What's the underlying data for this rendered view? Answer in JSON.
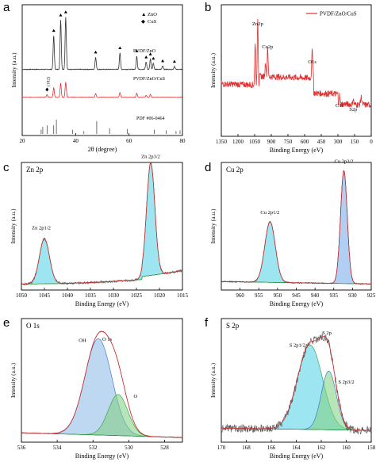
{
  "chart_data": [
    {
      "panel": "a",
      "type": "line",
      "xlabel": "2θ (degree)",
      "ylabel": "Intensity (a.u.)",
      "xlim": [
        20,
        80
      ],
      "xticks": [
        "20",
        "40",
        "60",
        "80"
      ],
      "legend": [
        {
          "symbol": "▲",
          "label": "ZnO"
        },
        {
          "symbol": "◆",
          "label": "CuS"
        }
      ],
      "legend_position": "top-right",
      "series": [
        {
          "name": "PVDF/ZnO",
          "color": "#333333",
          "peaks": [
            [
              31.8,
              0.55
            ],
            [
              34.4,
              0.8
            ],
            [
              36.3,
              0.85
            ],
            [
              47.5,
              0.2
            ],
            [
              56.6,
              0.27
            ],
            [
              62.9,
              0.22
            ],
            [
              66.4,
              0.12
            ],
            [
              68.0,
              0.17
            ],
            [
              69.1,
              0.1
            ],
            [
              72.6,
              0.06
            ],
            [
              77.0,
              0.05
            ]
          ]
        },
        {
          "name": "PVDF/ZnO/CuS",
          "color": "#e03030",
          "peaks": [
            [
              29.3,
              0.08
            ],
            [
              31.8,
              0.3
            ],
            [
              34.4,
              0.45
            ],
            [
              36.3,
              0.48
            ],
            [
              47.5,
              0.12
            ],
            [
              56.6,
              0.15
            ],
            [
              62.9,
              0.13
            ],
            [
              66.4,
              0.06
            ],
            [
              68.0,
              0.09
            ]
          ]
        }
      ],
      "annotations": [
        "PVDF/ZnO",
        "PVDF/ZnO/CuS",
        "PDF #06-0464",
        "(102)"
      ],
      "reference_lines": [
        27.1,
        27.7,
        29.3,
        31.8,
        32.8,
        38.8,
        43.1,
        47.9,
        52.7,
        59.3,
        69.5,
        73.9,
        77.6,
        79.1
      ],
      "reference_heights": [
        0.3,
        0.5,
        0.6,
        0.6,
        1.0,
        0.3,
        0.2,
        0.9,
        0.4,
        0.35,
        0.3,
        0.25,
        0.2,
        0.25
      ]
    },
    {
      "panel": "b",
      "type": "line",
      "xlabel": "Binding Energy (eV)",
      "ylabel": "Intensity (a.u.)",
      "xlim": [
        1350,
        0
      ],
      "xticks": [
        "1350",
        "1200",
        "1050",
        "900",
        "750",
        "600",
        "450",
        "300",
        "150",
        "0"
      ],
      "legend": [
        {
          "label": "PVDF/ZnO/CuS",
          "color": "#e03030"
        }
      ],
      "legend_position": "top-right",
      "peak_labels": [
        {
          "label": "Zn2p",
          "x": 1022
        },
        {
          "label": "Cu2p",
          "x": 933
        },
        {
          "label": "O1s",
          "x": 531
        },
        {
          "label": "C1s",
          "x": 285
        },
        {
          "label": "S2p",
          "x": 162
        }
      ]
    },
    {
      "panel": "c",
      "type": "area",
      "title": "Zn 2p",
      "xlabel": "Binding Energy (eV)",
      "ylabel": "Intensity (a.u.)",
      "xlim": [
        1050,
        1015
      ],
      "xticks": [
        "1050",
        "1045",
        "1040",
        "1035",
        "1030",
        "1025",
        "1020",
        "1015"
      ],
      "peaks": [
        {
          "label": "Zn 2p1/2",
          "center": 1045.0,
          "height": 0.37,
          "width": 1.1
        },
        {
          "label": "Zn 2p3/2",
          "center": 1021.9,
          "height": 0.93,
          "width": 0.9
        }
      ]
    },
    {
      "panel": "d",
      "type": "area",
      "title": "Cu 2p",
      "xlabel": "Binding Energy (eV)",
      "ylabel": "Intensity (a.u.)",
      "xlim": [
        965,
        925
      ],
      "xticks": [
        "960",
        "955",
        "950",
        "945",
        "940",
        "935",
        "930",
        "925"
      ],
      "peaks": [
        {
          "label": "Cu 2p1/2",
          "center": 952.0,
          "height": 0.5,
          "width": 1.4
        },
        {
          "label": "Cu 2p3/2",
          "center": 932.3,
          "height": 0.93,
          "width": 0.9
        }
      ]
    },
    {
      "panel": "e",
      "type": "area",
      "title": "O 1s",
      "xlabel": "Binding Energy (eV)",
      "ylabel": "Intensity (a.u.)",
      "xlim": [
        536,
        527
      ],
      "xticks": [
        "536",
        "534",
        "532",
        "530",
        "528"
      ],
      "peaks": [
        {
          "label": "OH",
          "center": 531.7,
          "height": 0.82,
          "width": 0.75
        },
        {
          "label": "O",
          "center": 530.6,
          "height": 0.35,
          "width": 0.55
        }
      ],
      "annotations": [
        "O 1s"
      ]
    },
    {
      "panel": "f",
      "type": "area",
      "title": "S 2p",
      "xlabel": "Binding Energy (eV)",
      "ylabel": "Intensity (a.u.)",
      "xlim": [
        170,
        158
      ],
      "xticks": [
        "170",
        "168",
        "166",
        "164",
        "162",
        "160",
        "158"
      ],
      "peaks": [
        {
          "label": "S 2p1/2",
          "center": 162.9,
          "height": 0.72,
          "width": 1.0
        },
        {
          "label": "S 2p3/2",
          "center": 161.4,
          "height": 0.5,
          "width": 0.6
        }
      ],
      "annotations": [
        "S 2p"
      ]
    }
  ]
}
